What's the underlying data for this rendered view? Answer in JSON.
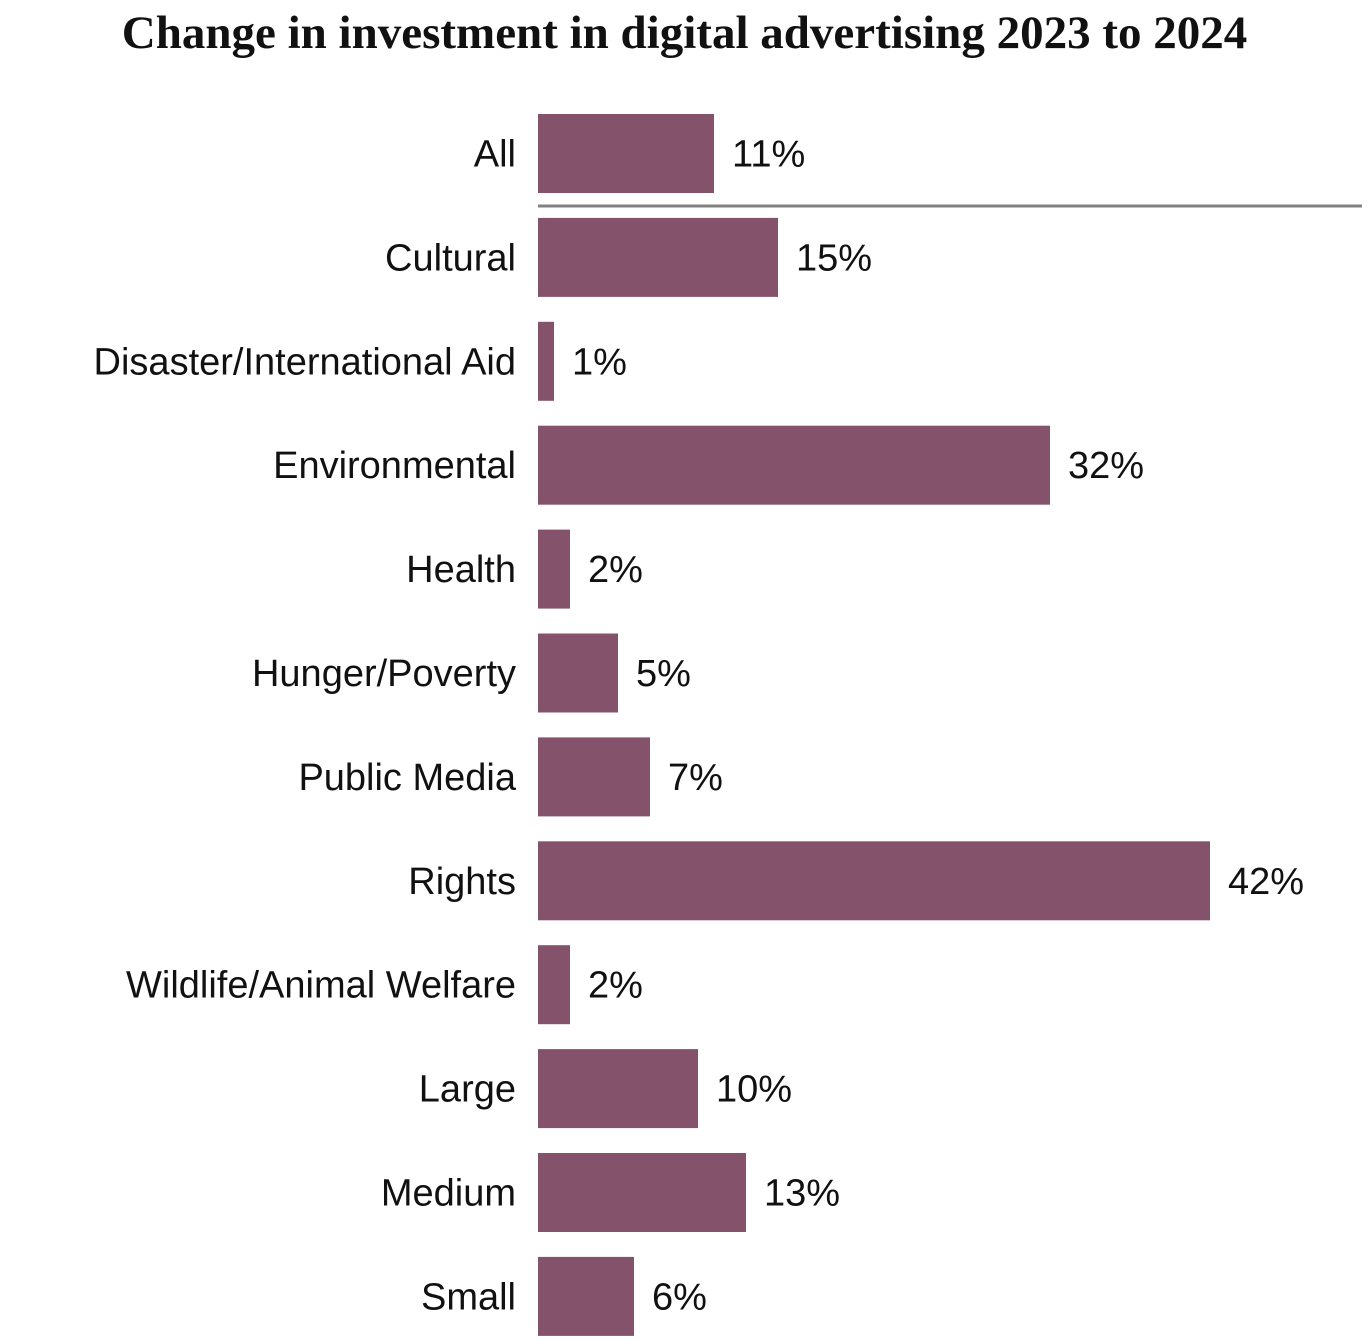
{
  "colors": {
    "bar": "#84536b",
    "separator": "#808080",
    "text": "#111111"
  },
  "chart_data": {
    "type": "bar",
    "orientation": "horizontal",
    "title": "Change in investment in digital advertising 2023 to 2024",
    "categories": [
      "All",
      "Cultural",
      "Disaster/International Aid",
      "Environmental",
      "Health",
      "Hunger/Poverty",
      "Public Media",
      "Rights",
      "Wildlife/Animal Welfare",
      "Large",
      "Medium",
      "Small"
    ],
    "values": [
      11,
      15,
      1,
      32,
      2,
      5,
      7,
      42,
      2,
      10,
      13,
      6
    ],
    "value_labels": [
      "11%",
      "15%",
      "1%",
      "32%",
      "2%",
      "5%",
      "7%",
      "42%",
      "2%",
      "10%",
      "13%",
      "6%"
    ],
    "unit": "%",
    "xlim": [
      0,
      42
    ],
    "grid": false,
    "legend": "none",
    "separator_after": "All"
  }
}
